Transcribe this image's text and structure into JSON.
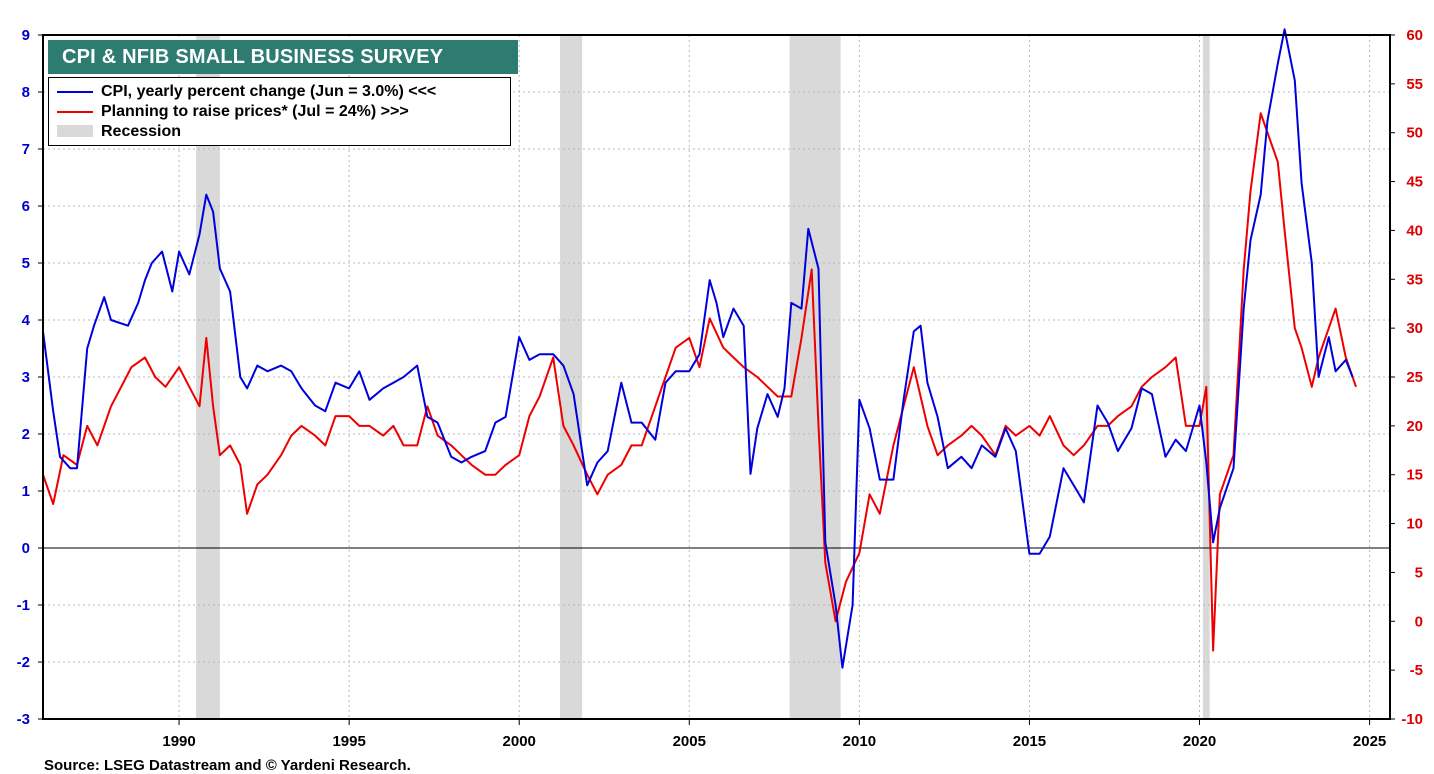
{
  "title": "CPI & NFIB SMALL BUSINESS SURVEY",
  "source": "Source: LSEG Datastream and © Yardeni Research.",
  "legend": {
    "cpi": "CPI, yearly percent change (Jun = 3.0%) <<<",
    "prices": "Planning to raise prices* (Jul = 24%) >>>",
    "recession": "Recession"
  },
  "colors": {
    "cpi": "#0000dd",
    "prices": "#ee0000",
    "recession": "#d9d9d9",
    "title_bg": "#2e7b70",
    "left_axis": "#0000cc",
    "right_axis": "#dd0000"
  },
  "chart_data": {
    "type": "line",
    "title": "CPI & NFIB SMALL BUSINESS SURVEY",
    "xlabel": "",
    "xlim": [
      1986.0,
      2025.6
    ],
    "x_ticks": [
      1990,
      1995,
      2000,
      2005,
      2010,
      2015,
      2020,
      2025
    ],
    "ylim_left": [
      -3,
      9
    ],
    "y_ticks_left": [
      -3,
      -2,
      -1,
      0,
      1,
      2,
      3,
      4,
      5,
      6,
      7,
      8,
      9
    ],
    "ylim_right": [
      -10,
      60
    ],
    "y_ticks_right": [
      -10,
      -5,
      0,
      5,
      10,
      15,
      20,
      25,
      30,
      35,
      40,
      45,
      50,
      55,
      60
    ],
    "grid": true,
    "legend_position": "top-left",
    "recessions": [
      [
        1990.5,
        1991.2
      ],
      [
        2001.2,
        2001.85
      ],
      [
        2007.95,
        2009.45
      ],
      [
        2020.1,
        2020.3
      ]
    ],
    "series": [
      {
        "name": "CPI, yearly percent change (Jun = 3.0%) <<<",
        "axis": "left",
        "x": [
          1986.0,
          1986.3,
          1986.5,
          1986.8,
          1987.0,
          1987.3,
          1987.5,
          1987.8,
          1988.0,
          1988.5,
          1988.8,
          1989.0,
          1989.2,
          1989.5,
          1989.8,
          1990.0,
          1990.3,
          1990.6,
          1990.8,
          1991.0,
          1991.2,
          1991.5,
          1991.8,
          1992.0,
          1992.3,
          1992.6,
          1993.0,
          1993.3,
          1993.6,
          1994.0,
          1994.3,
          1994.6,
          1995.0,
          1995.3,
          1995.6,
          1996.0,
          1996.3,
          1996.6,
          1997.0,
          1997.3,
          1997.6,
          1998.0,
          1998.3,
          1998.6,
          1999.0,
          1999.3,
          1999.6,
          2000.0,
          2000.3,
          2000.6,
          2001.0,
          2001.3,
          2001.6,
          2002.0,
          2002.3,
          2002.6,
          2003.0,
          2003.3,
          2003.6,
          2004.0,
          2004.3,
          2004.6,
          2005.0,
          2005.3,
          2005.6,
          2005.8,
          2006.0,
          2006.3,
          2006.6,
          2006.8,
          2007.0,
          2007.3,
          2007.6,
          2007.8,
          2008.0,
          2008.3,
          2008.5,
          2008.8,
          2009.0,
          2009.3,
          2009.5,
          2009.8,
          2010.0,
          2010.3,
          2010.6,
          2011.0,
          2011.3,
          2011.6,
          2011.8,
          2012.0,
          2012.3,
          2012.6,
          2013.0,
          2013.3,
          2013.6,
          2014.0,
          2014.3,
          2014.6,
          2015.0,
          2015.3,
          2015.6,
          2016.0,
          2016.3,
          2016.6,
          2017.0,
          2017.3,
          2017.6,
          2018.0,
          2018.3,
          2018.6,
          2019.0,
          2019.3,
          2019.6,
          2020.0,
          2020.2,
          2020.4,
          2020.6,
          2021.0,
          2021.3,
          2021.5,
          2021.8,
          2022.0,
          2022.3,
          2022.5,
          2022.8,
          2023.0,
          2023.3,
          2023.5,
          2023.8,
          2024.0,
          2024.3,
          2024.5
        ],
        "values": [
          3.8,
          2.4,
          1.6,
          1.4,
          1.4,
          3.5,
          3.9,
          4.4,
          4.0,
          3.9,
          4.3,
          4.7,
          5.0,
          5.2,
          4.5,
          5.2,
          4.8,
          5.5,
          6.2,
          5.9,
          4.9,
          4.5,
          3.0,
          2.8,
          3.2,
          3.1,
          3.2,
          3.1,
          2.8,
          2.5,
          2.4,
          2.9,
          2.8,
          3.1,
          2.6,
          2.8,
          2.9,
          3.0,
          3.2,
          2.3,
          2.2,
          1.6,
          1.5,
          1.6,
          1.7,
          2.2,
          2.3,
          3.7,
          3.3,
          3.4,
          3.4,
          3.2,
          2.7,
          1.1,
          1.5,
          1.7,
          2.9,
          2.2,
          2.2,
          1.9,
          2.9,
          3.1,
          3.1,
          3.4,
          4.7,
          4.3,
          3.7,
          4.2,
          3.9,
          1.3,
          2.1,
          2.7,
          2.3,
          2.8,
          4.3,
          4.2,
          5.6,
          4.9,
          0.1,
          -1.0,
          -2.1,
          -1.0,
          2.6,
          2.1,
          1.2,
          1.2,
          2.6,
          3.8,
          3.9,
          2.9,
          2.3,
          1.4,
          1.6,
          1.4,
          1.8,
          1.6,
          2.1,
          1.7,
          -0.1,
          -0.1,
          0.2,
          1.4,
          1.1,
          0.8,
          2.5,
          2.2,
          1.7,
          2.1,
          2.8,
          2.7,
          1.6,
          1.9,
          1.7,
          2.5,
          1.5,
          0.1,
          0.7,
          1.4,
          4.2,
          5.4,
          6.2,
          7.5,
          8.5,
          9.1,
          8.2,
          6.4,
          5.0,
          3.0,
          3.7,
          3.1,
          3.3,
          3.0
        ]
      },
      {
        "name": "Planning to raise prices* (Jul = 24%) >>>",
        "axis": "right",
        "x": [
          1986.0,
          1986.3,
          1986.6,
          1987.0,
          1987.3,
          1987.6,
          1988.0,
          1988.3,
          1988.6,
          1989.0,
          1989.3,
          1989.6,
          1990.0,
          1990.3,
          1990.6,
          1990.8,
          1991.0,
          1991.2,
          1991.5,
          1991.8,
          1992.0,
          1992.3,
          1992.6,
          1993.0,
          1993.3,
          1993.6,
          1994.0,
          1994.3,
          1994.6,
          1995.0,
          1995.3,
          1995.6,
          1996.0,
          1996.3,
          1996.6,
          1997.0,
          1997.3,
          1997.6,
          1998.0,
          1998.3,
          1998.6,
          1999.0,
          1999.3,
          1999.6,
          2000.0,
          2000.3,
          2000.6,
          2001.0,
          2001.3,
          2001.6,
          2002.0,
          2002.3,
          2002.6,
          2003.0,
          2003.3,
          2003.6,
          2004.0,
          2004.3,
          2004.6,
          2005.0,
          2005.3,
          2005.6,
          2006.0,
          2006.3,
          2006.6,
          2007.0,
          2007.3,
          2007.6,
          2008.0,
          2008.3,
          2008.6,
          2008.8,
          2009.0,
          2009.3,
          2009.6,
          2010.0,
          2010.3,
          2010.6,
          2011.0,
          2011.3,
          2011.6,
          2012.0,
          2012.3,
          2012.6,
          2013.0,
          2013.3,
          2013.6,
          2014.0,
          2014.3,
          2014.6,
          2015.0,
          2015.3,
          2015.6,
          2016.0,
          2016.3,
          2016.6,
          2017.0,
          2017.3,
          2017.6,
          2018.0,
          2018.3,
          2018.6,
          2019.0,
          2019.3,
          2019.6,
          2020.0,
          2020.2,
          2020.4,
          2020.6,
          2021.0,
          2021.3,
          2021.5,
          2021.8,
          2022.0,
          2022.3,
          2022.5,
          2022.8,
          2023.0,
          2023.3,
          2023.5,
          2023.8,
          2024.0,
          2024.3,
          2024.6
        ],
        "values": [
          15,
          12,
          17,
          16,
          20,
          18,
          22,
          24,
          26,
          27,
          25,
          24,
          26,
          24,
          22,
          29,
          22,
          17,
          18,
          16,
          11,
          14,
          15,
          17,
          19,
          20,
          19,
          18,
          21,
          21,
          20,
          20,
          19,
          20,
          18,
          18,
          22,
          19,
          18,
          17,
          16,
          15,
          15,
          16,
          17,
          21,
          23,
          27,
          20,
          18,
          15,
          13,
          15,
          16,
          18,
          18,
          22,
          25,
          28,
          29,
          26,
          31,
          28,
          27,
          26,
          25,
          24,
          23,
          23,
          29,
          36,
          20,
          6,
          0,
          4,
          7,
          13,
          11,
          18,
          22,
          26,
          20,
          17,
          18,
          19,
          20,
          19,
          17,
          20,
          19,
          20,
          19,
          21,
          18,
          17,
          18,
          20,
          20,
          21,
          22,
          24,
          25,
          26,
          27,
          20,
          20,
          24,
          -3,
          13,
          17,
          36,
          44,
          52,
          50,
          47,
          40,
          30,
          28,
          24,
          27,
          30,
          32,
          27,
          24
        ]
      }
    ]
  }
}
